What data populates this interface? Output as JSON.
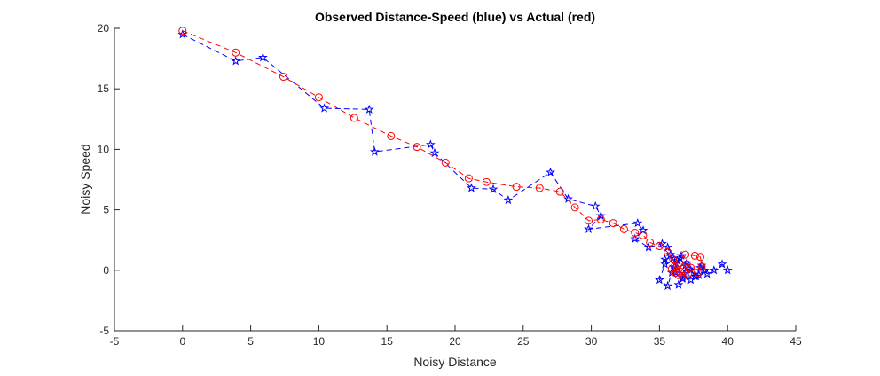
{
  "chart_data": {
    "type": "line",
    "title": "Observed Distance-Speed (blue) vs Actual (red)",
    "xlabel": "Noisy Distance",
    "ylabel": "Noisy Speed",
    "xlim": [
      -5,
      45
    ],
    "ylim": [
      -5,
      20
    ],
    "xticks": [
      -5,
      0,
      5,
      10,
      15,
      20,
      25,
      30,
      35,
      40,
      45
    ],
    "yticks": [
      -5,
      0,
      5,
      10,
      15,
      20
    ],
    "grid": false,
    "legend": "none",
    "series": [
      {
        "color": "#0000ff",
        "line_style": "dashed",
        "marker": "pentagram",
        "x": [
          0.0,
          3.9,
          5.9,
          10.4,
          13.7,
          14.1,
          18.2,
          18.5,
          21.2,
          22.8,
          23.9,
          27.0,
          28.3,
          30.3,
          30.7,
          29.8,
          33.4,
          33.8,
          33.2,
          34.2,
          35.2,
          35.6,
          35.8,
          36.0,
          36.3,
          35.4,
          35.0,
          35.6,
          35.9,
          36.3,
          36.7,
          36.4,
          36.8,
          37.2,
          37.6,
          38.0,
          38.3,
          37.9,
          37.3,
          36.9,
          36.5,
          36.1,
          36.6,
          35.4,
          36.2,
          36.7,
          37.0,
          37.3,
          37.7,
          38.1,
          38.5,
          39.0,
          39.6,
          40.0
        ],
        "y": [
          19.5,
          17.3,
          17.6,
          13.4,
          13.3,
          9.8,
          10.4,
          9.7,
          6.8,
          6.7,
          5.8,
          8.1,
          5.9,
          5.3,
          4.5,
          3.4,
          3.9,
          3.3,
          2.6,
          1.9,
          2.2,
          1.9,
          1.3,
          1.0,
          0.8,
          0.5,
          -0.8,
          -1.3,
          -0.2,
          0.2,
          -0.6,
          -1.2,
          -0.3,
          0.1,
          -0.5,
          0.2,
          0.0,
          -0.4,
          -0.8,
          0.4,
          1.0,
          0.3,
          1.2,
          0.9,
          -0.2,
          -0.7,
          0.6,
          0.0,
          -0.5,
          0.4,
          -0.3,
          0.0,
          0.5,
          0.0
        ]
      },
      {
        "color": "#ff0000",
        "line_style": "dashed",
        "marker": "circle",
        "x": [
          0.0,
          3.9,
          7.4,
          10.0,
          12.6,
          15.3,
          17.2,
          19.3,
          21.0,
          22.3,
          24.5,
          26.2,
          27.7,
          28.8,
          29.8,
          30.7,
          31.6,
          32.4,
          33.2,
          33.8,
          34.3,
          35.0,
          35.6,
          36.0,
          36.3,
          36.2,
          35.9,
          36.1,
          36.5,
          36.8,
          37.1,
          37.3,
          37.0,
          36.7,
          36.4,
          36.9,
          37.6,
          38.0,
          38.1,
          37.8
        ],
        "y": [
          19.8,
          18.0,
          16.0,
          14.3,
          12.6,
          11.1,
          10.2,
          8.9,
          7.6,
          7.3,
          6.9,
          6.8,
          6.5,
          5.2,
          4.1,
          4.2,
          3.9,
          3.4,
          3.1,
          2.9,
          2.3,
          2.0,
          1.5,
          0.9,
          0.3,
          -0.2,
          0.1,
          0.3,
          -0.1,
          -0.5,
          -0.3,
          0.2,
          0.5,
          0.1,
          -0.4,
          1.3,
          1.2,
          1.1,
          0.3,
          -0.2
        ]
      }
    ]
  }
}
